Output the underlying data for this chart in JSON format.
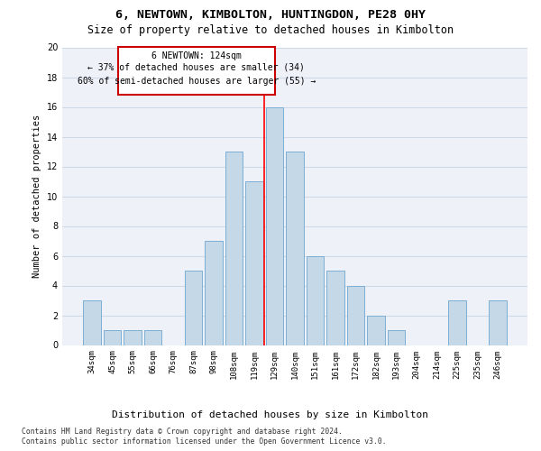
{
  "title": "6, NEWTOWN, KIMBOLTON, HUNTINGDON, PE28 0HY",
  "subtitle": "Size of property relative to detached houses in Kimbolton",
  "xlabel_bottom": "Distribution of detached houses by size in Kimbolton",
  "ylabel": "Number of detached properties",
  "categories": [
    "34sqm",
    "45sqm",
    "55sqm",
    "66sqm",
    "76sqm",
    "87sqm",
    "98sqm",
    "108sqm",
    "119sqm",
    "129sqm",
    "140sqm",
    "151sqm",
    "161sqm",
    "172sqm",
    "182sqm",
    "193sqm",
    "204sqm",
    "214sqm",
    "225sqm",
    "235sqm",
    "246sqm"
  ],
  "values": [
    3,
    1,
    1,
    1,
    0,
    5,
    7,
    13,
    11,
    16,
    13,
    6,
    5,
    4,
    2,
    1,
    0,
    0,
    3,
    0,
    3
  ],
  "bar_color": "#c5d8e8",
  "bar_edge_color": "#7bafd4",
  "grid_color": "#d0d8e8",
  "bg_color": "#eef2f8",
  "property_line_x": 8.5,
  "annotation_line1": "6 NEWTOWN: 124sqm",
  "annotation_line2": "← 37% of detached houses are smaller (34)",
  "annotation_line3": "60% of semi-detached houses are larger (55) →",
  "annotation_box_color": "#cc0000",
  "footnote1": "Contains HM Land Registry data © Crown copyright and database right 2024.",
  "footnote2": "Contains public sector information licensed under the Open Government Licence v3.0.",
  "ylim": [
    0,
    20
  ],
  "yticks": [
    0,
    2,
    4,
    6,
    8,
    10,
    12,
    14,
    16,
    18,
    20
  ]
}
